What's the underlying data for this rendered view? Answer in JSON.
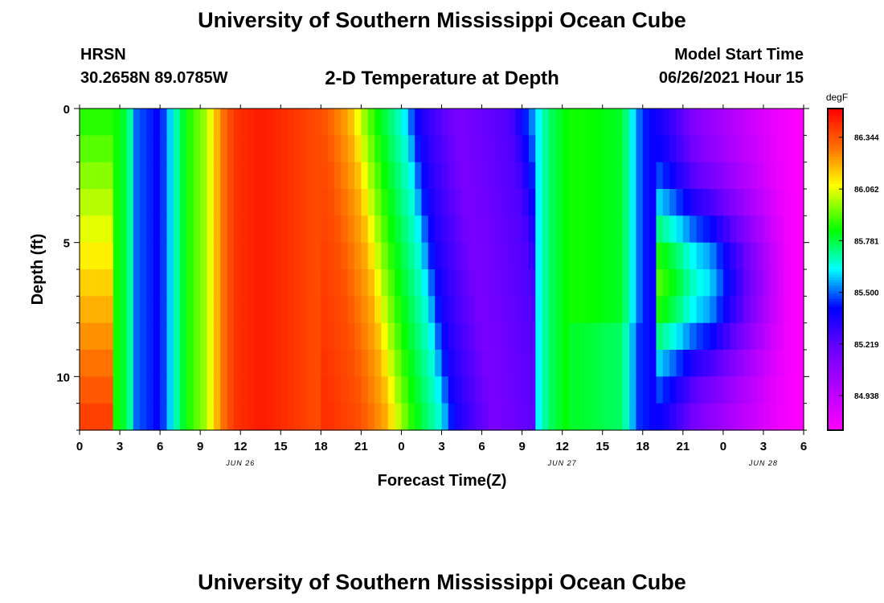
{
  "header": {
    "title": "University of Southern Mississippi Ocean Cube",
    "station": "HRSN",
    "coords": "30.2658N  89.0785W",
    "chart_title": "2-D Temperature at Depth",
    "model_start_label": "Model Start Time",
    "model_start_value": "06/26/2021 Hour 15",
    "footer_title": "University of Southern Mississippi Ocean Cube"
  },
  "chart_data": {
    "type": "heatmap",
    "title": "2-D Temperature at Depth",
    "xlabel": "Forecast Time(Z)",
    "ylabel": "Depth (ft)",
    "x_range_hours": [
      0,
      54
    ],
    "y_range_ft": [
      0,
      12
    ],
    "y_reversed": true,
    "x_tick_labels": [
      "0",
      "3",
      "6",
      "9",
      "12",
      "15",
      "18",
      "21",
      "0",
      "3",
      "6",
      "9",
      "12",
      "15",
      "18",
      "21",
      "0",
      "3",
      "6"
    ],
    "y_tick_labels": [
      "0",
      "5",
      "10"
    ],
    "y_tick_values": [
      0,
      5,
      10
    ],
    "date_labels": [
      {
        "text": "JUN 26",
        "hour": 12
      },
      {
        "text": "JUN 27",
        "hour": 36
      },
      {
        "text": "JUN 28",
        "hour": 51
      }
    ],
    "colorbar": {
      "unit": "degF",
      "min": 84.75,
      "max": 86.5,
      "tick_labels": [
        "86.344",
        "86.062",
        "85.781",
        "85.500",
        "85.219",
        "84.938"
      ],
      "tick_values": [
        86.344,
        86.062,
        85.781,
        85.5,
        85.219,
        84.938
      ]
    },
    "depth_rows_ft": [
      0,
      1,
      2,
      3,
      4,
      5,
      6,
      7,
      8,
      9,
      10,
      11
    ],
    "column_hours_surface": [
      0,
      3,
      3.8,
      4.2,
      6,
      7,
      8,
      9.5,
      10.5,
      11.5,
      13.5,
      16,
      18,
      20,
      21,
      22,
      24,
      25,
      26,
      28,
      32,
      33.5,
      35,
      36.5,
      37.5,
      40.5,
      41.5,
      42,
      44,
      46,
      48,
      50,
      52,
      54
    ],
    "column_temps_surface": [
      85.85,
      85.85,
      85.7,
      85.5,
      85.4,
      85.65,
      85.85,
      86.0,
      86.25,
      86.4,
      86.45,
      86.4,
      86.35,
      86.2,
      86.0,
      85.85,
      85.65,
      85.4,
      85.3,
      85.15,
      85.25,
      85.5,
      85.75,
      85.85,
      85.85,
      85.8,
      85.55,
      85.45,
      85.3,
      85.1,
      85.0,
      84.9,
      84.8,
      84.75
    ]
  }
}
